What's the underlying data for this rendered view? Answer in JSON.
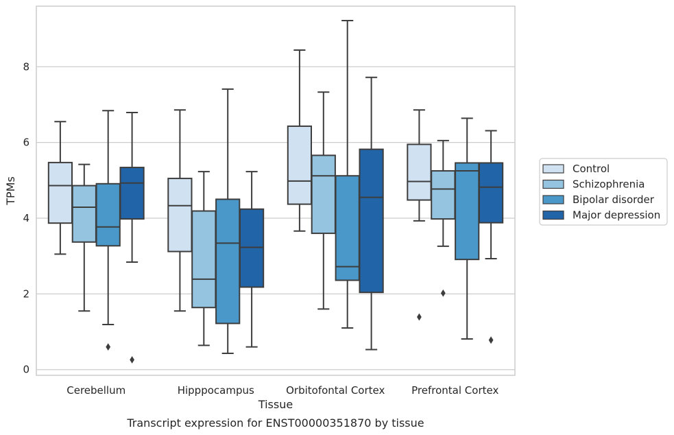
{
  "chart_data": {
    "type": "boxplot",
    "xlabel": "Tissue",
    "ylabel": "TPMs",
    "caption": "Transcript expression for ENST00000351870 by tissue",
    "ylim": [
      -0.15,
      9.6
    ],
    "yticks": [
      "0",
      "2",
      "4",
      "6",
      "8"
    ],
    "ytick_values": [
      0,
      2,
      4,
      6,
      8
    ],
    "grid": "horizontal",
    "legend_position": "right",
    "categories": [
      "Cerebellum",
      "Hipppocampus",
      "Orbitofontal Cortex",
      "Prefrontal Cortex"
    ],
    "series": [
      {
        "name": "Control",
        "color": "#d0e1f2",
        "boxes": [
          {
            "whislo": 3.05,
            "q1": 3.87,
            "med": 4.86,
            "q3": 5.47,
            "whishi": 6.55,
            "fliers": []
          },
          {
            "whislo": 1.55,
            "q1": 3.12,
            "med": 4.33,
            "q3": 5.05,
            "whishi": 6.86,
            "fliers": []
          },
          {
            "whislo": 3.66,
            "q1": 4.37,
            "med": 4.98,
            "q3": 6.43,
            "whishi": 8.44,
            "fliers": []
          },
          {
            "whislo": 3.93,
            "q1": 4.48,
            "med": 4.97,
            "q3": 5.95,
            "whishi": 6.86,
            "fliers": [
              1.39
            ]
          }
        ]
      },
      {
        "name": "Schizophrenia",
        "color": "#94c4df",
        "boxes": [
          {
            "whislo": 1.55,
            "q1": 3.37,
            "med": 4.29,
            "q3": 4.86,
            "whishi": 5.42,
            "fliers": []
          },
          {
            "whislo": 0.64,
            "q1": 1.64,
            "med": 2.39,
            "q3": 4.19,
            "whishi": 5.23,
            "fliers": []
          },
          {
            "whislo": 1.6,
            "q1": 3.6,
            "med": 5.12,
            "q3": 5.66,
            "whishi": 7.33,
            "fliers": []
          },
          {
            "whislo": 3.26,
            "q1": 3.98,
            "med": 4.77,
            "q3": 5.25,
            "whishi": 6.05,
            "fliers": [
              2.02
            ]
          }
        ]
      },
      {
        "name": "Bipolar disorder",
        "color": "#4a98c9",
        "boxes": [
          {
            "whislo": 1.19,
            "q1": 3.27,
            "med": 3.77,
            "q3": 4.91,
            "whishi": 6.84,
            "fliers": [
              0.6
            ]
          },
          {
            "whislo": 0.43,
            "q1": 1.22,
            "med": 3.34,
            "q3": 4.5,
            "whishi": 7.41,
            "fliers": []
          },
          {
            "whislo": 1.1,
            "q1": 2.36,
            "med": 2.72,
            "q3": 5.12,
            "whishi": 9.22,
            "fliers": []
          },
          {
            "whislo": 0.81,
            "q1": 2.91,
            "med": 5.25,
            "q3": 5.46,
            "whishi": 6.64,
            "fliers": []
          }
        ]
      },
      {
        "name": "Major depression",
        "color": "#2264a8",
        "boxes": [
          {
            "whislo": 2.84,
            "q1": 3.98,
            "med": 4.93,
            "q3": 5.34,
            "whishi": 6.79,
            "fliers": [
              0.26
            ]
          },
          {
            "whislo": 0.6,
            "q1": 2.18,
            "med": 3.23,
            "q3": 4.24,
            "whishi": 5.23,
            "fliers": []
          },
          {
            "whislo": 0.53,
            "q1": 2.04,
            "med": 4.55,
            "q3": 5.82,
            "whishi": 7.72,
            "fliers": []
          },
          {
            "whislo": 2.93,
            "q1": 3.88,
            "med": 4.82,
            "q3": 5.46,
            "whishi": 6.31,
            "fliers": [
              0.78
            ]
          }
        ]
      }
    ]
  }
}
